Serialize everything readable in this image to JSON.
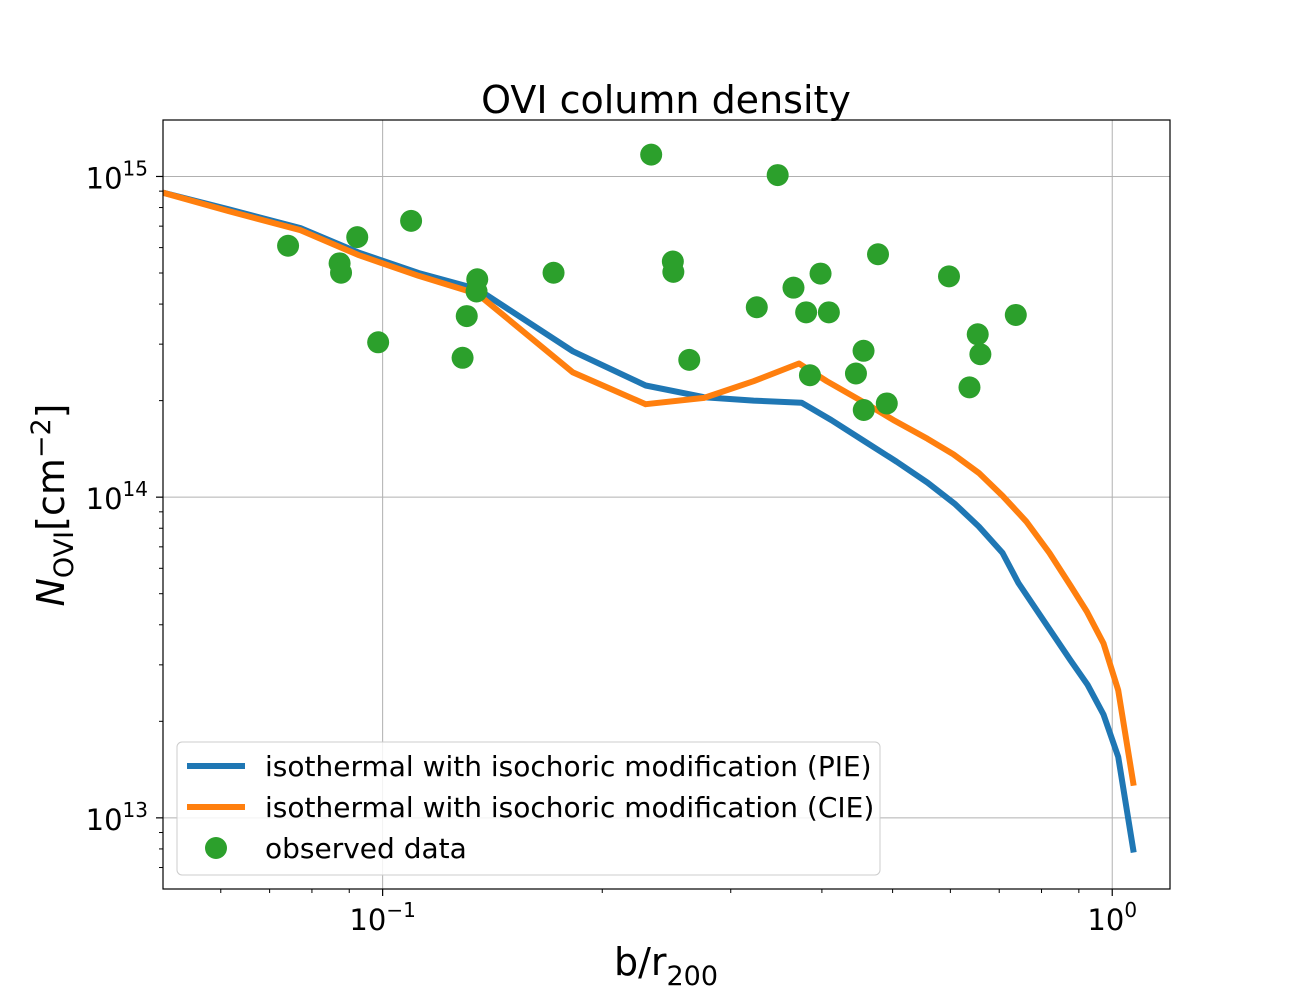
{
  "chart_data": {
    "type": "line",
    "title": "OVI column density",
    "xlabel": "b/r",
    "xlabel_sub": "200",
    "ylabel_main": "N",
    "ylabel_sub": "OVI",
    "ylabel_unit": "[cm",
    "ylabel_exp": "−2",
    "ylabel_close": "]",
    "xscale": "log",
    "yscale": "log",
    "xlim": [
      0.05,
      1.2
    ],
    "ylim": [
      6000000000000.0,
      1500000000000000.0
    ],
    "grid": true,
    "legend_position": "lower-left",
    "xticks": [
      {
        "value": 0.1,
        "base": "10",
        "exp": "−1"
      },
      {
        "value": 1.0,
        "base": "10",
        "exp": "0"
      }
    ],
    "yticks": [
      {
        "value": 10000000000000.0,
        "base": "10",
        "exp": "13"
      },
      {
        "value": 100000000000000.0,
        "base": "10",
        "exp": "14"
      },
      {
        "value": 1000000000000000.0,
        "base": "10",
        "exp": "15"
      }
    ],
    "series": [
      {
        "name": "isothermal with isochoric modification (PIE)",
        "kind": "line",
        "color": "#1f77b4",
        "x": [
          0.05,
          0.0615,
          0.0772,
          0.0925,
          0.112,
          0.135,
          0.1823,
          0.2294,
          0.2758,
          0.3224,
          0.3752,
          0.4119,
          0.4563,
          0.5063,
          0.5583,
          0.6095,
          0.6564,
          0.7073,
          0.7438,
          0.8188,
          0.8766,
          0.9253,
          0.9729,
          1.019,
          1.07
        ],
        "y": [
          890000000000000.0,
          790000000000000.0,
          690000000000000.0,
          580000000000000.0,
          500000000000000.0,
          445000000000000.0,
          285000000000000.0,
          223000000000000.0,
          205000000000000.0,
          200000000000000.0,
          197000000000000.0,
          174000000000000.0,
          150000000000000.0,
          129000000000000.0,
          111000000000000.0,
          95000000000000.0,
          81000000000000.0,
          67000000000000.0,
          54000000000000.0,
          39000000000000.0,
          31000000000000.0,
          26000000000000.0,
          21000000000000.0,
          15500000000000.0,
          7800000000000.0
        ]
      },
      {
        "name": "isothermal with isochoric modification (CIE)",
        "kind": "line",
        "color": "#ff7f0e",
        "x": [
          0.05,
          0.0615,
          0.0772,
          0.0925,
          0.112,
          0.135,
          0.1823,
          0.2294,
          0.2758,
          0.3224,
          0.3721,
          0.4063,
          0.4575,
          0.5033,
          0.5583,
          0.6058,
          0.6564,
          0.7073,
          0.7622,
          0.8201,
          0.8766,
          0.9228,
          0.9729,
          1.019,
          1.07
        ],
        "y": [
          890000000000000.0,
          780000000000000.0,
          680000000000000.0,
          570000000000000.0,
          490000000000000.0,
          430000000000000.0,
          245000000000000.0,
          195000000000000.0,
          204000000000000.0,
          230000000000000.0,
          261000000000000.0,
          230000000000000.0,
          197000000000000.0,
          173000000000000.0,
          152000000000000.0,
          136000000000000.0,
          119000000000000.0,
          101000000000000.0,
          84000000000000.0,
          67000000000000.0,
          53000000000000.0,
          44000000000000.0,
          35000000000000.0,
          25000000000000.0,
          12600000000000.0
        ]
      },
      {
        "name": "observed data",
        "kind": "scatter",
        "color": "#2ca02c",
        "x": [
          0.0742,
          0.0873,
          0.0877,
          0.0923,
          0.0986,
          0.1094,
          0.1287,
          0.1304,
          0.1345,
          0.1348,
          0.1715,
          0.2334,
          0.2499,
          0.2503,
          0.2632,
          0.3257,
          0.3479,
          0.3657,
          0.3806,
          0.3852,
          0.3983,
          0.4089,
          0.4454,
          0.4562,
          0.4565,
          0.4775,
          0.4909,
          0.5974,
          0.6373,
          0.6541,
          0.6596,
          0.7376
        ],
        "y": [
          608000000000000.0,
          536000000000000.0,
          501000000000000.0,
          647000000000000.0,
          304000000000000.0,
          727000000000000.0,
          272000000000000.0,
          367000000000000.0,
          438000000000000.0,
          478000000000000.0,
          501000000000000.0,
          1170000000000000.0,
          543000000000000.0,
          504000000000000.0,
          268000000000000.0,
          391000000000000.0,
          1010000000000000.0,
          450000000000000.0,
          377000000000000.0,
          240000000000000.0,
          498000000000000.0,
          377000000000000.0,
          243000000000000.0,
          286000000000000.0,
          187000000000000.0,
          572000000000000.0,
          196000000000000.0,
          488000000000000.0,
          220000000000000.0,
          322000000000000.0,
          279000000000000.0,
          370000000000000.0
        ]
      }
    ]
  }
}
